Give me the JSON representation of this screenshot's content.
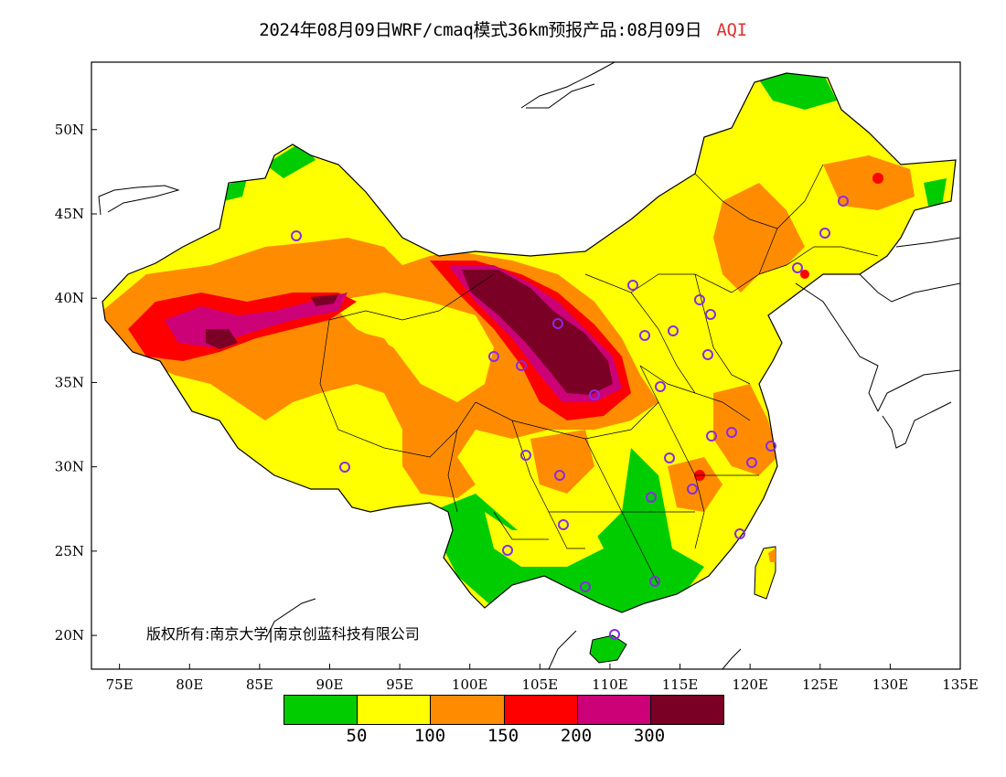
{
  "title": {
    "main": "2024年08月09日WRF/cmaq模式36km预报产品:08月09日",
    "variable": "AQI"
  },
  "map": {
    "lon_range": [
      73,
      135
    ],
    "lat_range": [
      18,
      54
    ],
    "lat_ticks": [
      "50N",
      "45N",
      "40N",
      "35N",
      "30N",
      "25N",
      "20N"
    ],
    "lon_ticks": [
      "75E",
      "80E",
      "85E",
      "90E",
      "95E",
      "100E",
      "105E",
      "110E",
      "115E",
      "120E",
      "125E",
      "130E",
      "135E"
    ],
    "background_color": "#ffffff",
    "station_marker_color": "#8a2be2"
  },
  "copyright": "版权所有:南京大学|南京创蓝科技有限公司",
  "legend": {
    "colors": [
      "#00cc00",
      "#ffff00",
      "#ff8c00",
      "#ff0000",
      "#cc0077",
      "#7a0025"
    ],
    "labels": [
      "50",
      "100",
      "150",
      "200",
      "300"
    ]
  }
}
